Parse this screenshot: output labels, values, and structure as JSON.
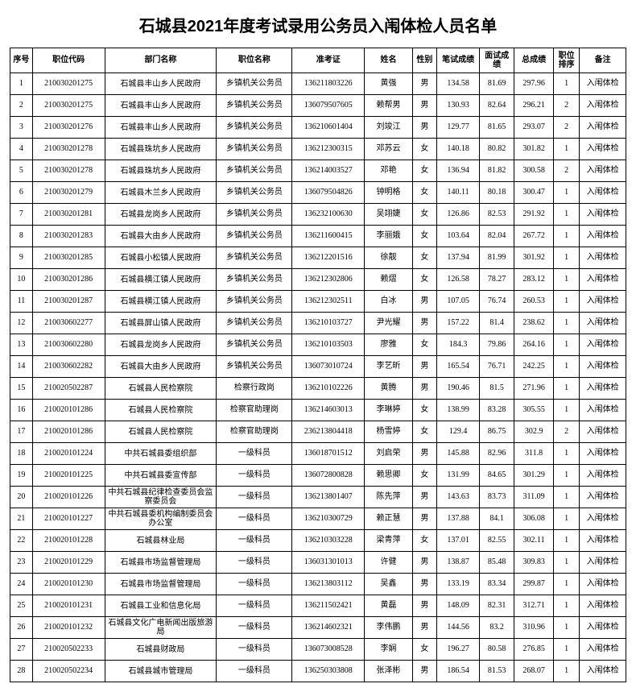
{
  "title": "石城县2021年度考试录用公务员入闱体检人员名单",
  "columns": [
    "序号",
    "职位代码",
    "部门名称",
    "职位名称",
    "准考证",
    "姓名",
    "性别",
    "笔试成绩",
    "面试成绩",
    "总成绩",
    "职位排序",
    "备注"
  ],
  "rows": [
    {
      "seq": "1",
      "code": "210030201275",
      "dept": "石城县丰山乡人民政府",
      "pos": "乡镇机关公务员",
      "exam": "136211803226",
      "name": "黄强",
      "sex": "男",
      "s1": "134.58",
      "s2": "81.69",
      "tot": "297.96",
      "rank": "1",
      "note": "入闱体检"
    },
    {
      "seq": "2",
      "code": "210030201275",
      "dept": "石城县丰山乡人民政府",
      "pos": "乡镇机关公务员",
      "exam": "136079507605",
      "name": "赖帮男",
      "sex": "男",
      "s1": "130.93",
      "s2": "82.64",
      "tot": "296.21",
      "rank": "2",
      "note": "入闱体检"
    },
    {
      "seq": "3",
      "code": "210030201276",
      "dept": "石城县丰山乡人民政府",
      "pos": "乡镇机关公务员",
      "exam": "136210601404",
      "name": "刘竣江",
      "sex": "男",
      "s1": "129.77",
      "s2": "81.65",
      "tot": "293.07",
      "rank": "2",
      "note": "入闱体检"
    },
    {
      "seq": "4",
      "code": "210030201278",
      "dept": "石城县珠坑乡人民政府",
      "pos": "乡镇机关公务员",
      "exam": "136212300315",
      "name": "邓苏云",
      "sex": "女",
      "s1": "140.18",
      "s2": "80.82",
      "tot": "301.82",
      "rank": "1",
      "note": "入闱体检"
    },
    {
      "seq": "5",
      "code": "210030201278",
      "dept": "石城县珠坑乡人民政府",
      "pos": "乡镇机关公务员",
      "exam": "136214003527",
      "name": "邓艳",
      "sex": "女",
      "s1": "136.94",
      "s2": "81.82",
      "tot": "300.58",
      "rank": "2",
      "note": "入闱体检"
    },
    {
      "seq": "6",
      "code": "210030201279",
      "dept": "石城县木兰乡人民政府",
      "pos": "乡镇机关公务员",
      "exam": "136079504826",
      "name": "钟明格",
      "sex": "女",
      "s1": "140.11",
      "s2": "80.18",
      "tot": "300.47",
      "rank": "1",
      "note": "入闱体检"
    },
    {
      "seq": "7",
      "code": "210030201281",
      "dept": "石城县龙岗乡人民政府",
      "pos": "乡镇机关公务员",
      "exam": "136232100630",
      "name": "吴翊婕",
      "sex": "女",
      "s1": "126.86",
      "s2": "82.53",
      "tot": "291.92",
      "rank": "1",
      "note": "入闱体检"
    },
    {
      "seq": "8",
      "code": "210030201283",
      "dept": "石城县大由乡人民政府",
      "pos": "乡镇机关公务员",
      "exam": "136211600415",
      "name": "李丽娥",
      "sex": "女",
      "s1": "103.64",
      "s2": "82.04",
      "tot": "267.72",
      "rank": "1",
      "note": "入闱体检"
    },
    {
      "seq": "9",
      "code": "210030201285",
      "dept": "石城县小松镇人民政府",
      "pos": "乡镇机关公务员",
      "exam": "136212201516",
      "name": "徐靓",
      "sex": "女",
      "s1": "137.94",
      "s2": "81.99",
      "tot": "301.92",
      "rank": "1",
      "note": "入闱体检"
    },
    {
      "seq": "10",
      "code": "210030201286",
      "dept": "石城县横江镇人民政府",
      "pos": "乡镇机关公务员",
      "exam": "136212302806",
      "name": "赖熠",
      "sex": "女",
      "s1": "126.58",
      "s2": "78.27",
      "tot": "283.12",
      "rank": "1",
      "note": "入闱体检"
    },
    {
      "seq": "11",
      "code": "210030201287",
      "dept": "石城县横江镇人民政府",
      "pos": "乡镇机关公务员",
      "exam": "136212302511",
      "name": "白冰",
      "sex": "男",
      "s1": "107.05",
      "s2": "76.74",
      "tot": "260.53",
      "rank": "1",
      "note": "入闱体检"
    },
    {
      "seq": "12",
      "code": "210030602277",
      "dept": "石城县屏山镇人民政府",
      "pos": "乡镇机关公务员",
      "exam": "136210103727",
      "name": "尹光耀",
      "sex": "男",
      "s1": "157.22",
      "s2": "81.4",
      "tot": "238.62",
      "rank": "1",
      "note": "入闱体检"
    },
    {
      "seq": "13",
      "code": "210030602280",
      "dept": "石城县龙岗乡人民政府",
      "pos": "乡镇机关公务员",
      "exam": "136210103503",
      "name": "廖雅",
      "sex": "女",
      "s1": "184.3",
      "s2": "79.86",
      "tot": "264.16",
      "rank": "1",
      "note": "入闱体检"
    },
    {
      "seq": "14",
      "code": "210030602282",
      "dept": "石城县大由乡人民政府",
      "pos": "乡镇机关公务员",
      "exam": "136073010724",
      "name": "李艺昕",
      "sex": "男",
      "s1": "165.54",
      "s2": "76.71",
      "tot": "242.25",
      "rank": "1",
      "note": "入闱体检"
    },
    {
      "seq": "15",
      "code": "210020502287",
      "dept": "石城县人民检察院",
      "pos": "检察行政岗",
      "exam": "136210102226",
      "name": "黄腾",
      "sex": "男",
      "s1": "190.46",
      "s2": "81.5",
      "tot": "271.96",
      "rank": "1",
      "note": "入闱体检"
    },
    {
      "seq": "16",
      "code": "210020101286",
      "dept": "石城县人民检察院",
      "pos": "检察官助理岗",
      "exam": "136214603013",
      "name": "李琳婷",
      "sex": "女",
      "s1": "138.99",
      "s2": "83.28",
      "tot": "305.55",
      "rank": "1",
      "note": "入闱体检"
    },
    {
      "seq": "17",
      "code": "210020101286",
      "dept": "石城县人民检察院",
      "pos": "检察官助理岗",
      "exam": "236213804418",
      "name": "杨雪婷",
      "sex": "女",
      "s1": "129.4",
      "s2": "86.75",
      "tot": "302.9",
      "rank": "2",
      "note": "入闱体检"
    },
    {
      "seq": "18",
      "code": "210020101224",
      "dept": "中共石城县委组织部",
      "pos": "一级科员",
      "exam": "136018701512",
      "name": "刘启荣",
      "sex": "男",
      "s1": "145.88",
      "s2": "82.96",
      "tot": "311.8",
      "rank": "1",
      "note": "入闱体检"
    },
    {
      "seq": "19",
      "code": "210020101225",
      "dept": "中共石城县委宣传部",
      "pos": "一级科员",
      "exam": "136072800828",
      "name": "赖思卿",
      "sex": "女",
      "s1": "131.99",
      "s2": "84.65",
      "tot": "301.29",
      "rank": "1",
      "note": "入闱体检"
    },
    {
      "seq": "20",
      "code": "210020101226",
      "dept": "中共石城县纪律检查委员会监察委员会",
      "pos": "一级科员",
      "exam": "136213801407",
      "name": "陈先萍",
      "sex": "男",
      "s1": "143.63",
      "s2": "83.73",
      "tot": "311.09",
      "rank": "1",
      "note": "入闱体检"
    },
    {
      "seq": "21",
      "code": "210020101227",
      "dept": "中共石城县委机构编制委员会办公室",
      "pos": "一级科员",
      "exam": "136210300729",
      "name": "赖正慧",
      "sex": "男",
      "s1": "137.88",
      "s2": "84.1",
      "tot": "306.08",
      "rank": "1",
      "note": "入闱体检"
    },
    {
      "seq": "22",
      "code": "210020101228",
      "dept": "石城县林业局",
      "pos": "一级科员",
      "exam": "136210303228",
      "name": "梁青萍",
      "sex": "女",
      "s1": "137.01",
      "s2": "82.55",
      "tot": "302.11",
      "rank": "1",
      "note": "入闱体检"
    },
    {
      "seq": "23",
      "code": "210020101229",
      "dept": "石城县市场监督管理局",
      "pos": "一级科员",
      "exam": "136031301013",
      "name": "许健",
      "sex": "男",
      "s1": "138.87",
      "s2": "85.48",
      "tot": "309.83",
      "rank": "1",
      "note": "入闱体检"
    },
    {
      "seq": "24",
      "code": "210020101230",
      "dept": "石城县市场监督管理局",
      "pos": "一级科员",
      "exam": "136213803112",
      "name": "吴鑫",
      "sex": "男",
      "s1": "133.19",
      "s2": "83.34",
      "tot": "299.87",
      "rank": "1",
      "note": "入闱体检"
    },
    {
      "seq": "25",
      "code": "210020101231",
      "dept": "石城县工业和信息化局",
      "pos": "一级科员",
      "exam": "136211502421",
      "name": "黄磊",
      "sex": "男",
      "s1": "148.09",
      "s2": "82.31",
      "tot": "312.71",
      "rank": "1",
      "note": "入闱体检"
    },
    {
      "seq": "26",
      "code": "210020101232",
      "dept": "石城县文化广电新闻出版旅游局",
      "pos": "一级科员",
      "exam": "136214602321",
      "name": "李伟鹏",
      "sex": "男",
      "s1": "144.56",
      "s2": "83.2",
      "tot": "310.96",
      "rank": "1",
      "note": "入闱体检"
    },
    {
      "seq": "27",
      "code": "210020502233",
      "dept": "石城县财政局",
      "pos": "一级科员",
      "exam": "136073008528",
      "name": "李娴",
      "sex": "女",
      "s1": "196.27",
      "s2": "80.58",
      "tot": "276.85",
      "rank": "1",
      "note": "入闱体检"
    },
    {
      "seq": "28",
      "code": "210020502234",
      "dept": "石城县城市管理局",
      "pos": "一级科员",
      "exam": "136250303808",
      "name": "张泽彬",
      "sex": "男",
      "s1": "186.54",
      "s2": "81.53",
      "tot": "268.07",
      "rank": "1",
      "note": "入闱体检"
    }
  ]
}
